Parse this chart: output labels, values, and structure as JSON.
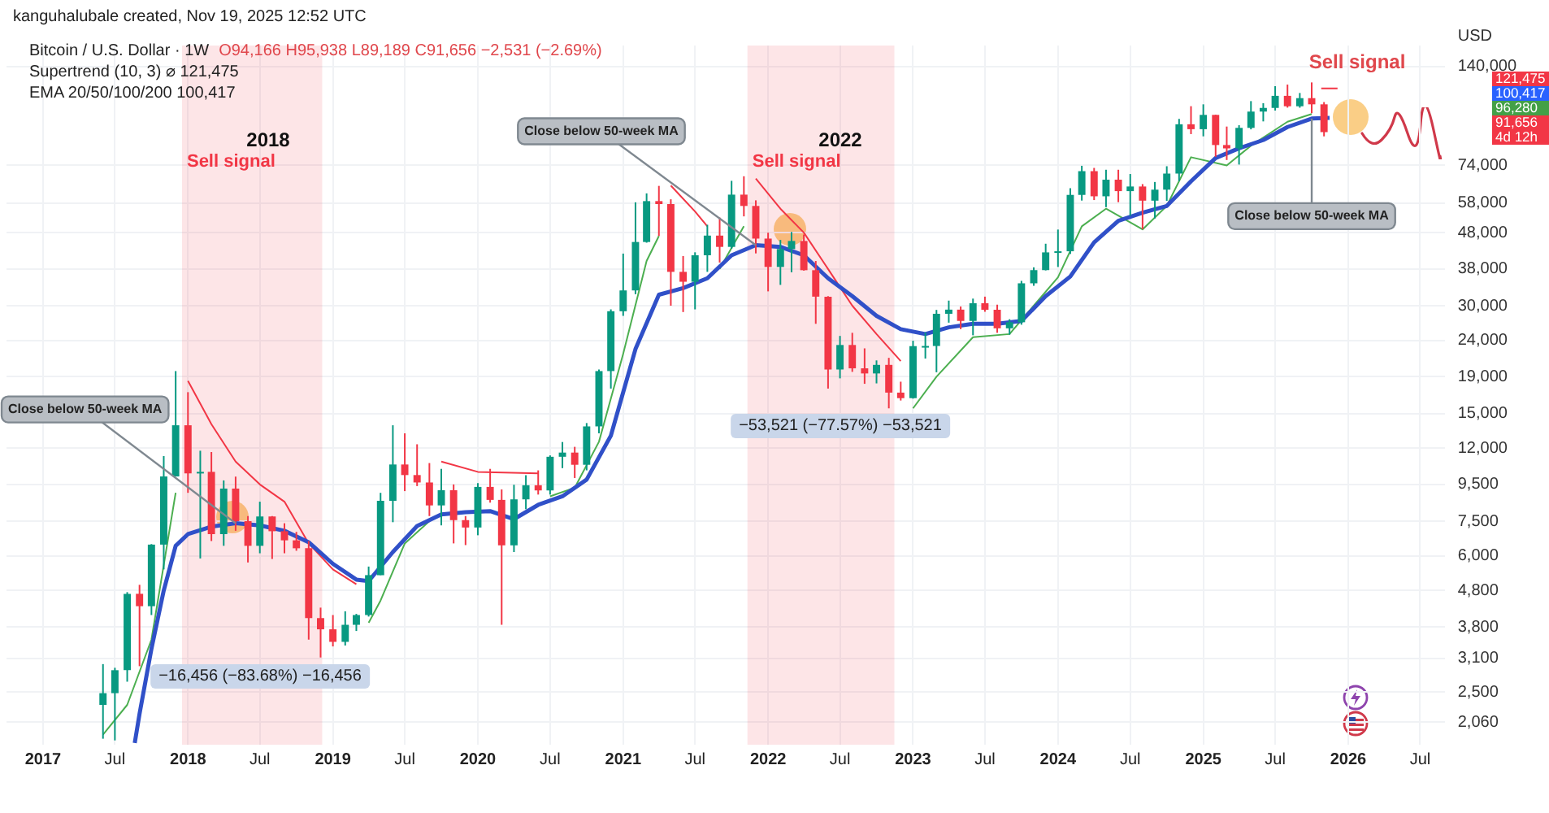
{
  "chart_data": {
    "type": "candlestick",
    "title": "Bitcoin / U.S. Dollar · 1W",
    "subtitle": "O94,166 H95,938 L89,189 C91,656 −2,531 (−2.69%)",
    "ylabel": "USD",
    "x": [
      "2017-06",
      "2017-07",
      "2017-08",
      "2017-09",
      "2017-10",
      "2017-11",
      "2017-12",
      "2018-01",
      "2018-02",
      "2018-03",
      "2018-04",
      "2018-05",
      "2018-06",
      "2018-07",
      "2018-08",
      "2018-09",
      "2018-10",
      "2018-11",
      "2018-12",
      "2019-01",
      "2019-02",
      "2019-03",
      "2019-04",
      "2019-05",
      "2019-06",
      "2019-07",
      "2019-08",
      "2019-09",
      "2019-10",
      "2019-11",
      "2019-12",
      "2020-01",
      "2020-02",
      "2020-03",
      "2020-04",
      "2020-05",
      "2020-06",
      "2020-07",
      "2020-08",
      "2020-09",
      "2020-10",
      "2020-11",
      "2020-12",
      "2021-01",
      "2021-02",
      "2021-03",
      "2021-04",
      "2021-05",
      "2021-06",
      "2021-07",
      "2021-08",
      "2021-09",
      "2021-10",
      "2021-11",
      "2021-12",
      "2022-01",
      "2022-02",
      "2022-03",
      "2022-04",
      "2022-05",
      "2022-06",
      "2022-07",
      "2022-08",
      "2022-09",
      "2022-10",
      "2022-11",
      "2022-12",
      "2023-01",
      "2023-02",
      "2023-03",
      "2023-04",
      "2023-05",
      "2023-06",
      "2023-07",
      "2023-08",
      "2023-09",
      "2023-10",
      "2023-11",
      "2023-12",
      "2024-01",
      "2024-02",
      "2024-03",
      "2024-04",
      "2024-05",
      "2024-06",
      "2024-07",
      "2024-08",
      "2024-09",
      "2024-10",
      "2024-11",
      "2024-12",
      "2025-01",
      "2025-02",
      "2025-03",
      "2025-04",
      "2025-05",
      "2025-06",
      "2025-07",
      "2025-08",
      "2025-09",
      "2025-10",
      "2025-11"
    ],
    "ohlc": [
      [
        2300,
        2990,
        1850,
        2480
      ],
      [
        2480,
        2920,
        1830,
        2875
      ],
      [
        2875,
        4750,
        2670,
        4700
      ],
      [
        4700,
        4980,
        2950,
        4340
      ],
      [
        4340,
        6470,
        4100,
        6450
      ],
      [
        6450,
        11400,
        5500,
        10000
      ],
      [
        10000,
        19700,
        10000,
        13900
      ],
      [
        13900,
        17200,
        9000,
        10200
      ],
      [
        10200,
        11800,
        5900,
        10300
      ],
      [
        10300,
        11700,
        6600,
        6900
      ],
      [
        6900,
        9750,
        6400,
        9250
      ],
      [
        9250,
        9990,
        7050,
        7500
      ],
      [
        7500,
        7750,
        5750,
        6400
      ],
      [
        6400,
        8500,
        6100,
        7730
      ],
      [
        7730,
        7750,
        5880,
        7030
      ],
      [
        7030,
        7400,
        6100,
        6630
      ],
      [
        6630,
        7000,
        6200,
        6300
      ],
      [
        6300,
        6600,
        3500,
        4020
      ],
      [
        4020,
        4300,
        3120,
        3740
      ],
      [
        3740,
        4100,
        3350,
        3450
      ],
      [
        3450,
        4200,
        3370,
        3850
      ],
      [
        3850,
        4130,
        3700,
        4100
      ],
      [
        4100,
        5600,
        4060,
        5300
      ],
      [
        5300,
        9000,
        5300,
        8550
      ],
      [
        8550,
        13900,
        7450,
        10800
      ],
      [
        10800,
        13200,
        9100,
        10090
      ],
      [
        10090,
        12300,
        9400,
        9620
      ],
      [
        9620,
        10900,
        7750,
        8300
      ],
      [
        8300,
        10500,
        7300,
        9150
      ],
      [
        9150,
        9500,
        6500,
        7550
      ],
      [
        7550,
        7750,
        6430,
        7200
      ],
      [
        7200,
        9580,
        6850,
        9350
      ],
      [
        9350,
        10500,
        8450,
        8600
      ],
      [
        8600,
        9200,
        3850,
        6420
      ],
      [
        6420,
        9480,
        6150,
        8630
      ],
      [
        8630,
        10080,
        8100,
        9450
      ],
      [
        9450,
        10400,
        8900,
        9140
      ],
      [
        9140,
        11450,
        8900,
        11350
      ],
      [
        11350,
        12480,
        10550,
        11660
      ],
      [
        11660,
        12100,
        9900,
        10780
      ],
      [
        10780,
        14100,
        10400,
        13800
      ],
      [
        13800,
        19900,
        13200,
        19700
      ],
      [
        19700,
        29300,
        17600,
        28950
      ],
      [
        28950,
        41950,
        28100,
        33100
      ],
      [
        33100,
        58350,
        32300,
        45200
      ],
      [
        45200,
        61800,
        45000,
        58800
      ],
      [
        58800,
        64850,
        47000,
        57700
      ],
      [
        57700,
        59500,
        30000,
        37300
      ],
      [
        37300,
        41300,
        28800,
        35000
      ],
      [
        35000,
        42300,
        29300,
        41500
      ],
      [
        41500,
        50500,
        37300,
        47100
      ],
      [
        47100,
        52900,
        39600,
        43800
      ],
      [
        43800,
        67000,
        43300,
        61300
      ],
      [
        61300,
        69000,
        53300,
        57000
      ],
      [
        57000,
        59100,
        42000,
        46200
      ],
      [
        46200,
        47990,
        32900,
        38500
      ],
      [
        38500,
        45800,
        34300,
        43200
      ],
      [
        43200,
        48200,
        37200,
        45500
      ],
      [
        45500,
        47400,
        37600,
        37700
      ],
      [
        37700,
        40000,
        26700,
        31800
      ],
      [
        31800,
        31900,
        17600,
        19900
      ],
      [
        19900,
        24700,
        18800,
        23300
      ],
      [
        23300,
        25200,
        19600,
        20050
      ],
      [
        20050,
        22800,
        18150,
        19400
      ],
      [
        19400,
        21100,
        18200,
        20500
      ],
      [
        20500,
        21450,
        15500,
        17150
      ],
      [
        17150,
        18400,
        16300,
        16550
      ],
      [
        16550,
        23950,
        16500,
        23130
      ],
      [
        23130,
        25250,
        21350,
        23150
      ],
      [
        23150,
        29200,
        19550,
        28480
      ],
      [
        28480,
        31000,
        26900,
        29250
      ],
      [
        29250,
        29850,
        25800,
        27200
      ],
      [
        27200,
        31400,
        24800,
        30480
      ],
      [
        30480,
        31800,
        28850,
        29230
      ],
      [
        29230,
        30200,
        25200,
        25940
      ],
      [
        25940,
        27500,
        24900,
        26970
      ],
      [
        26970,
        35200,
        26550,
        34650
      ],
      [
        34650,
        38400,
        34100,
        37720
      ],
      [
        37720,
        44700,
        37650,
        42280
      ],
      [
        42280,
        48970,
        38500,
        42580
      ],
      [
        42580,
        63900,
        41850,
        61200
      ],
      [
        61200,
        73800,
        59000,
        71300
      ],
      [
        71300,
        72800,
        59200,
        60650
      ],
      [
        60650,
        71950,
        56550,
        67500
      ],
      [
        67500,
        71950,
        58400,
        62700
      ],
      [
        62700,
        70000,
        53500,
        64600
      ],
      [
        64600,
        65600,
        49100,
        58970
      ],
      [
        58970,
        66500,
        52600,
        63300
      ],
      [
        63300,
        73600,
        58900,
        70200
      ],
      [
        70200,
        99800,
        66800,
        96400
      ],
      [
        96400,
        108300,
        90500,
        93400
      ],
      [
        93400,
        109600,
        89200,
        102400
      ],
      [
        102400,
        102500,
        78200,
        84350
      ],
      [
        84350,
        95000,
        76600,
        82550
      ],
      [
        82550,
        95800,
        74400,
        94200
      ],
      [
        94200,
        111900,
        93300,
        104600
      ],
      [
        104600,
        110400,
        98200,
        107100
      ],
      [
        107100,
        123200,
        105300,
        115750
      ],
      [
        115750,
        124450,
        107300,
        108250
      ],
      [
        108250,
        117900,
        107250,
        114050
      ],
      [
        114050,
        126200,
        103500,
        109600
      ],
      [
        109600,
        111200,
        89189,
        91656
      ]
    ],
    "series": [
      {
        "type": "line",
        "color": "#3050c8",
        "x": [
          "2017-08-20",
          "2017-09",
          "2017-10",
          "2017-11",
          "2017-12",
          "2018-01",
          "2018-03",
          "2018-05",
          "2018-07",
          "2018-09",
          "2018-11",
          "2019-01",
          "2019-03",
          "2019-04",
          "2019-06",
          "2019-08",
          "2019-10",
          "2019-12",
          "2020-02",
          "2020-04",
          "2020-06",
          "2020-08",
          "2020-10",
          "2020-12",
          "2021-02",
          "2021-04",
          "2021-06",
          "2021-08",
          "2021-10",
          "2021-12",
          "2022-02",
          "2022-04",
          "2022-06",
          "2022-08",
          "2022-10",
          "2022-12",
          "2023-02",
          "2023-04",
          "2023-06",
          "2023-08",
          "2023-10",
          "2023-12",
          "2024-02",
          "2024-04",
          "2024-06",
          "2024-08",
          "2024-10",
          "2024-12",
          "2025-02",
          "2025-04",
          "2025-06",
          "2025-08",
          "2025-10",
          "2025-11-15"
        ],
        "values": [
          1800,
          2170,
          3300,
          4800,
          6400,
          6900,
          7240,
          7400,
          7300,
          7050,
          6550,
          5700,
          5150,
          5100,
          6150,
          7270,
          7830,
          7950,
          8000,
          7600,
          8330,
          8800,
          9800,
          13000,
          22700,
          32200,
          33600,
          35800,
          41500,
          44300,
          43800,
          41500,
          35800,
          31900,
          28100,
          25800,
          25000,
          26100,
          26700,
          26700,
          27200,
          31900,
          36200,
          45100,
          51800,
          54600,
          57000,
          66800,
          77600,
          82600,
          87100,
          94700,
          100000,
          100417
        ]
      },
      {
        "type": "line",
        "color": "#4caf50",
        "x": [
          "2017-06",
          "2017-08",
          "2017-10",
          "2017-12",
          "2018-01",
          "2019-04",
          "2019-05",
          "2019-07",
          "2019-09",
          "2019-10",
          "2020-07",
          "2020-09",
          "2020-11",
          "2021-01",
          "2021-03",
          "2021-04",
          "2021-05",
          "2021-09",
          "2021-11",
          "2021-12",
          "2023-01",
          "2023-03",
          "2023-06",
          "2023-09",
          "2023-11",
          "2024-01",
          "2024-03",
          "2024-05",
          "2024-08",
          "2024-10",
          "2024-12",
          "2025-03",
          "2025-05",
          "2025-08",
          "2025-10"
        ],
        "values": [
          1900,
          2300,
          3500,
          9000,
          null,
          3900,
          4500,
          6500,
          7500,
          null,
          8800,
          9300,
          12500,
          22000,
          40000,
          47000,
          null,
          38000,
          50000,
          null,
          15500,
          19000,
          24500,
          25000,
          30000,
          36000,
          50000,
          56000,
          49000,
          57000,
          78000,
          74000,
          84000,
          98000,
          103000
        ]
      },
      {
        "type": "line",
        "color": "#f23645",
        "x": [
          "2018-01",
          "2018-03",
          "2018-05",
          "2018-07",
          "2018-09",
          "2018-11",
          "2019-01",
          "2019-03",
          "2019-04",
          "2019-10",
          "2020-01",
          "2020-06",
          "2020-07",
          "2021-05",
          "2021-07",
          "2021-08",
          "2021-09",
          "2021-12",
          "2022-02",
          "2022-04",
          "2022-06",
          "2022-08",
          "2022-10",
          "2022-12",
          "2023-01",
          "2025-10-25",
          "2025-12-05"
        ],
        "values": [
          18500,
          14000,
          11000,
          9500,
          8500,
          6500,
          5500,
          5000,
          null,
          11000,
          10300,
          10200,
          null,
          65000,
          55000,
          50000,
          null,
          68000,
          56000,
          48000,
          38000,
          30000,
          25000,
          21000,
          null,
          121475,
          121475
        ]
      }
    ],
    "xlim": [
      "2016-10",
      "2026-09"
    ],
    "xticks": [
      {
        "value": "2017-01",
        "label": "2017"
      },
      {
        "value": "2017-07",
        "label": "Jul"
      },
      {
        "value": "2018-01",
        "label": "2018"
      },
      {
        "value": "2018-07",
        "label": "Jul"
      },
      {
        "value": "2019-01",
        "label": "2019"
      },
      {
        "value": "2019-07",
        "label": "Jul"
      },
      {
        "value": "2020-01",
        "label": "2020"
      },
      {
        "value": "2020-07",
        "label": "Jul"
      },
      {
        "value": "2021-01",
        "label": "2021"
      },
      {
        "value": "2021-07",
        "label": "Jul"
      },
      {
        "value": "2022-01",
        "label": "2022"
      },
      {
        "value": "2022-07",
        "label": "Jul"
      },
      {
        "value": "2023-01",
        "label": "2023"
      },
      {
        "value": "2023-07",
        "label": "Jul"
      },
      {
        "value": "2024-01",
        "label": "2024"
      },
      {
        "value": "2024-07",
        "label": "Jul"
      },
      {
        "value": "2025-01",
        "label": "2025"
      },
      {
        "value": "2025-07",
        "label": "Jul"
      },
      {
        "value": "2026-01",
        "label": "2026"
      },
      {
        "value": "2026-07",
        "label": "Jul"
      }
    ],
    "ylim": [
      1780,
      160000
    ],
    "yticks": [
      {
        "value": 2060,
        "label": "2,060"
      },
      {
        "value": 2500,
        "label": "2,500"
      },
      {
        "value": 3100,
        "label": "3,100"
      },
      {
        "value": 3800,
        "label": "3,800"
      },
      {
        "value": 4800,
        "label": "4,800"
      },
      {
        "value": 6000,
        "label": "6,000"
      },
      {
        "value": 7500,
        "label": "7,500"
      },
      {
        "value": 9500,
        "label": "9,500"
      },
      {
        "value": 12000,
        "label": "12,000"
      },
      {
        "value": 15000,
        "label": "15,000"
      },
      {
        "value": 19000,
        "label": "19,000"
      },
      {
        "value": 24000,
        "label": "24,000"
      },
      {
        "value": 30000,
        "label": "30,000"
      },
      {
        "value": 38000,
        "label": "38,000"
      },
      {
        "value": 48000,
        "label": "48,000"
      },
      {
        "value": 58000,
        "label": "58,000"
      },
      {
        "value": 74000,
        "label": "74,000"
      },
      {
        "value": 140000,
        "label": "140,000"
      }
    ],
    "log": "y",
    "grid": true,
    "legend": false,
    "marker": "none",
    "bands": [
      {
        "axis": "x",
        "from": "2017-12-17",
        "to": "2018-12-05",
        "label": "Sell signal",
        "color": "#f23645"
      },
      {
        "axis": "x",
        "from": "2021-11-10",
        "to": "2022-11-15",
        "label": "Sell signal",
        "color": "#f23645"
      }
    ],
    "annotations": [
      "kanguhalubale created, Nov 19, 2025 12:52 UTC",
      "Supertrend (10, 3) ⌀ 121,475",
      "EMA 20/50/100/200 100,417",
      "2018",
      "−16,456 (−83.68%) −16,456",
      "2022",
      "−53,521 (−77.57%) −53,521",
      "Sell signal",
      "121,475",
      "100,417",
      "96,280",
      "91,656",
      "4d 12h",
      {
        "text": "Close below 50-week MA",
        "x": "2018-05",
        "y": 7400
      },
      {
        "text": "Close below 50-week MA",
        "x": "2021-12",
        "y": 44300
      },
      {
        "text": "Close below 50-week MA",
        "x": "2025-10",
        "y": 100000
      }
    ]
  }
}
